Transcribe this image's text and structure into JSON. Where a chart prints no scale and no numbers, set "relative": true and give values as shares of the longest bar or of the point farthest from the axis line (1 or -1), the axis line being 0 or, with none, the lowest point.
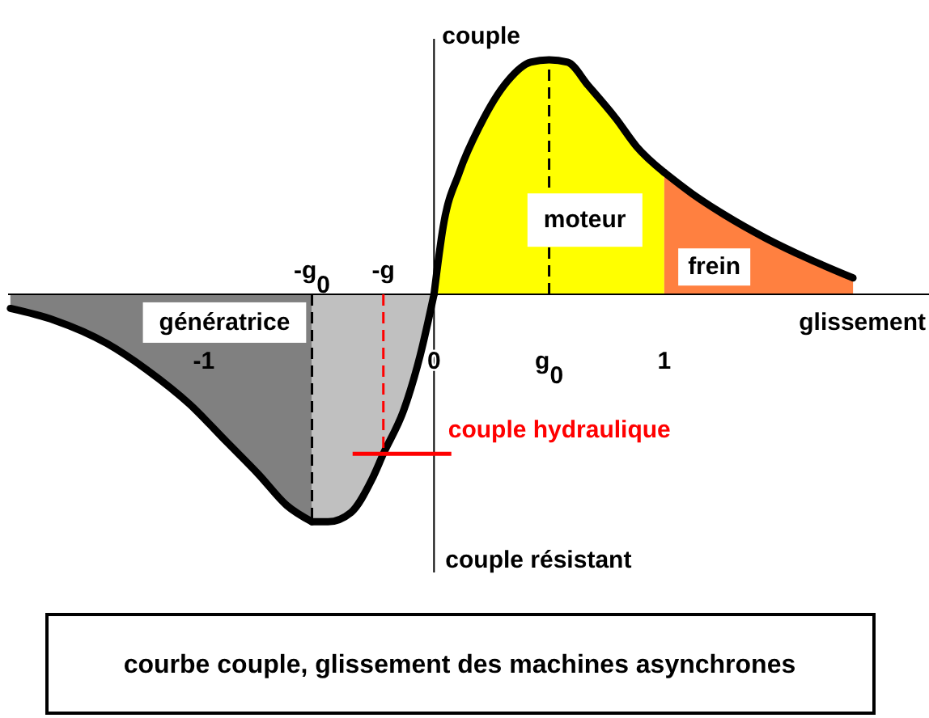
{
  "chart_data": {
    "type": "area",
    "relative": true,
    "xlabel": "glissement",
    "ylabel": "couple",
    "xlim": [
      -1.85,
      2.15
    ],
    "xticks": [
      -1,
      0,
      1
    ],
    "series": [
      {
        "name": "génératrice",
        "color": "#808080",
        "x": [
          -1.84,
          -1.65,
          -1.42,
          -1.25,
          -1.06,
          -0.9,
          -0.76,
          -0.64,
          -0.53
        ],
        "values": [
          -0.06,
          -0.11,
          -0.21,
          -0.32,
          -0.47,
          -0.63,
          -0.77,
          -0.9,
          -0.97
        ]
      },
      {
        "color": "#c0c0c0",
        "x": [
          -0.53,
          -0.46,
          -0.36,
          -0.27,
          -0.22,
          -0.13,
          -0.06,
          0
        ],
        "values": [
          -0.97,
          -0.97,
          -0.93,
          -0.79,
          -0.68,
          -0.49,
          -0.26,
          0
        ]
      },
      {
        "name": "moteur",
        "color": "#ffff00",
        "x": [
          0,
          0.04,
          0.11,
          0.2,
          0.32,
          0.42,
          0.5,
          0.58,
          0.67,
          0.79,
          0.88,
          1
        ],
        "values": [
          0,
          0.29,
          0.52,
          0.72,
          0.91,
          0.99,
          1,
          0.99,
          0.89,
          0.75,
          0.63,
          0.52
        ]
      },
      {
        "name": "frein",
        "color": "#ff8040",
        "x": [
          1,
          1.12,
          1.26,
          1.44,
          1.63,
          1.82
        ],
        "values": [
          0.52,
          0.43,
          0.34,
          0.24,
          0.15,
          0.07
        ]
      }
    ],
    "ref_lines": [
      {
        "axis": "x",
        "value": -0.53,
        "label": "-g$_{0}$",
        "color": "#000000",
        "line_style": "dashed"
      },
      {
        "axis": "x",
        "value": 0.5,
        "label": "g$_{0}$",
        "color": "#000000",
        "line_style": "dashed"
      },
      {
        "axis": "x",
        "value": -0.22,
        "label": "-g",
        "color": "#ff0000",
        "line_style": "dashed"
      },
      {
        "axis": "y",
        "value": -0.68,
        "label": "couple hydraulique",
        "color": "#ff0000"
      }
    ],
    "annotations": [
      "couple résistant",
      "courbe couple, glissement des machines asynchrones"
    ]
  }
}
